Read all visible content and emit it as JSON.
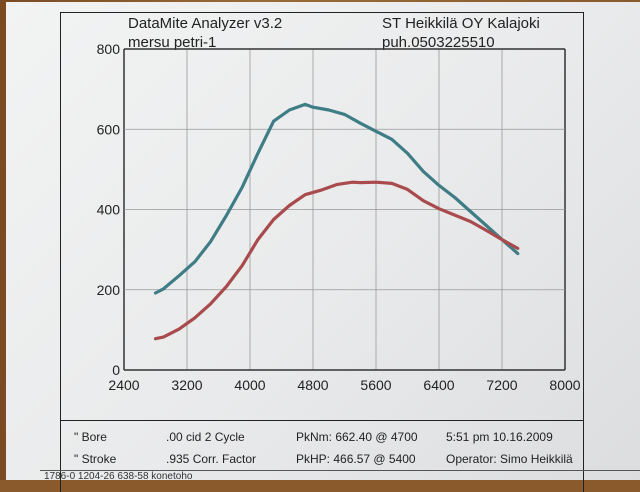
{
  "header": {
    "app_title": "DataMite Analyzer v3.2",
    "run_name": "mersu petri-1",
    "shop": "ST Heikkilä OY Kalajoki",
    "phone": "puh.0503225510"
  },
  "info": {
    "bore_label": "\" Bore",
    "bore_value": ".00 cid  2 Cycle",
    "stroke_label": "\" Stroke",
    "stroke_value": ".935 Corr. Factor",
    "pk_nm": "PkNm: 662.40 @  4700",
    "pk_hp": "PkHP: 466.57 @  5400",
    "time_date": "5:51 pm  10.16.2009",
    "operator": "Operator: Simo Heikkilä"
  },
  "footer": {
    "code": "1786-0   1204-26   638-58  konetoho"
  },
  "chart_data": {
    "type": "line",
    "title": "",
    "xlabel": "",
    "ylabel": "",
    "xlim": [
      2400,
      8000
    ],
    "ylim": [
      0,
      800
    ],
    "x_ticks": [
      "2400",
      "3200",
      "4000",
      "4800",
      "5600",
      "6400",
      "7200",
      "8000"
    ],
    "y_ticks": [
      "0",
      "200",
      "400",
      "600",
      "800"
    ],
    "grid": true,
    "series": [
      {
        "color": "#3e7d86",
        "points": [
          [
            2800,
            192
          ],
          [
            2900,
            202
          ],
          [
            3100,
            235
          ],
          [
            3300,
            270
          ],
          [
            3500,
            320
          ],
          [
            3700,
            385
          ],
          [
            3900,
            455
          ],
          [
            4100,
            540
          ],
          [
            4300,
            620
          ],
          [
            4500,
            648
          ],
          [
            4700,
            662
          ],
          [
            4800,
            655
          ],
          [
            5000,
            648
          ],
          [
            5200,
            637
          ],
          [
            5400,
            615
          ],
          [
            5600,
            595
          ],
          [
            5800,
            575
          ],
          [
            6000,
            540
          ],
          [
            6200,
            495
          ],
          [
            6400,
            460
          ],
          [
            6600,
            430
          ],
          [
            6800,
            395
          ],
          [
            7000,
            360
          ],
          [
            7200,
            325
          ],
          [
            7400,
            290
          ]
        ]
      },
      {
        "color": "#a94a4c",
        "points": [
          [
            2800,
            78
          ],
          [
            2900,
            82
          ],
          [
            3100,
            102
          ],
          [
            3300,
            130
          ],
          [
            3500,
            165
          ],
          [
            3700,
            208
          ],
          [
            3900,
            260
          ],
          [
            4100,
            325
          ],
          [
            4300,
            375
          ],
          [
            4500,
            410
          ],
          [
            4700,
            437
          ],
          [
            4900,
            448
          ],
          [
            5100,
            462
          ],
          [
            5300,
            468
          ],
          [
            5400,
            467
          ],
          [
            5600,
            468
          ],
          [
            5800,
            465
          ],
          [
            6000,
            450
          ],
          [
            6200,
            422
          ],
          [
            6400,
            402
          ],
          [
            6600,
            386
          ],
          [
            6800,
            370
          ],
          [
            7000,
            348
          ],
          [
            7200,
            325
          ],
          [
            7400,
            303
          ]
        ]
      }
    ]
  }
}
